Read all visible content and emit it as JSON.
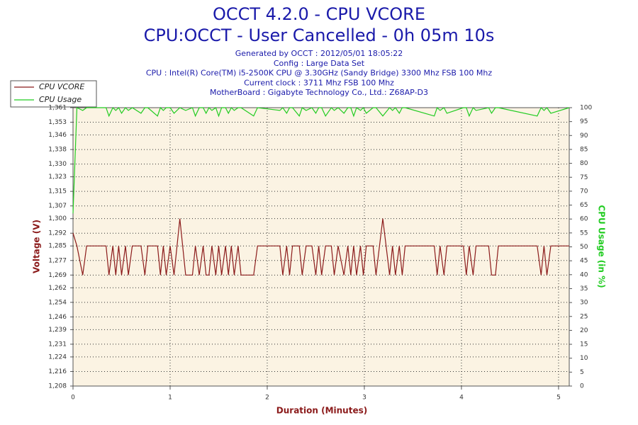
{
  "chart_data": {
    "type": "line",
    "title": "OCCT 4.2.0 - CPU VCORE",
    "subtitle": "CPU:OCCT - User Cancelled - 0h 05m 10s",
    "info_lines": [
      "Generated by OCCT : 2012/05/01 18:05:22",
      "Config : Large Data Set",
      "CPU : Intel(R) Core(TM) i5-2500K CPU @ 3.30GHz (Sandy Bridge) 3300 Mhz FSB 100 Mhz",
      "Current clock : 3711 Mhz FSB 100 Mhz",
      "MotherBoard : Gigabyte Technology Co., Ltd.: Z68AP-D3"
    ],
    "x_label": "Duration (Minutes)",
    "y_label": "Voltage (V)",
    "y2_label": "CPU Usage (in %)",
    "xlim": [
      0,
      5.11
    ],
    "xticks": [
      0,
      1,
      2,
      3,
      4,
      5
    ],
    "ylim": [
      1.208,
      1.361
    ],
    "yticks": [
      {
        "value": 1.208,
        "label": "1,208"
      },
      {
        "value": 1.216,
        "label": "1,216"
      },
      {
        "value": 1.224,
        "label": "1,224"
      },
      {
        "value": 1.231,
        "label": "1,231"
      },
      {
        "value": 1.239,
        "label": "1,239"
      },
      {
        "value": 1.246,
        "label": "1,246"
      },
      {
        "value": 1.254,
        "label": "1,254"
      },
      {
        "value": 1.262,
        "label": "1,262"
      },
      {
        "value": 1.269,
        "label": "1,269"
      },
      {
        "value": 1.277,
        "label": "1,277"
      },
      {
        "value": 1.285,
        "label": "1,285"
      },
      {
        "value": 1.292,
        "label": "1,292"
      },
      {
        "value": 1.3,
        "label": "1,300"
      },
      {
        "value": 1.307,
        "label": "1,307"
      },
      {
        "value": 1.315,
        "label": "1,315"
      },
      {
        "value": 1.323,
        "label": "1,323"
      },
      {
        "value": 1.33,
        "label": "1,330"
      },
      {
        "value": 1.338,
        "label": "1,338"
      },
      {
        "value": 1.346,
        "label": "1,346"
      },
      {
        "value": 1.353,
        "label": "1,353"
      },
      {
        "value": 1.361,
        "label": "1,361"
      }
    ],
    "y2lim": [
      0,
      100
    ],
    "y2ticks": [
      0,
      5,
      10,
      15,
      20,
      25,
      30,
      35,
      40,
      45,
      50,
      55,
      60,
      65,
      70,
      75,
      80,
      85,
      90,
      95,
      100
    ],
    "grid": true,
    "legend": "top-left",
    "x": [
      0,
      0.04,
      0.1,
      0.14,
      0.34,
      0.37,
      0.41,
      0.44,
      0.47,
      0.5,
      0.54,
      0.57,
      0.61,
      0.7,
      0.74,
      0.77,
      0.87,
      0.9,
      0.93,
      0.96,
      1.0,
      1.04,
      1.1,
      1.16,
      1.23,
      1.26,
      1.3,
      1.34,
      1.37,
      1.4,
      1.43,
      1.47,
      1.5,
      1.53,
      1.57,
      1.6,
      1.63,
      1.66,
      1.7,
      1.73,
      1.86,
      1.9,
      2.13,
      2.16,
      2.2,
      2.23,
      2.26,
      2.33,
      2.36,
      2.4,
      2.46,
      2.5,
      2.53,
      2.56,
      2.6,
      2.66,
      2.69,
      2.73,
      2.79,
      2.83,
      2.86,
      2.89,
      2.92,
      2.96,
      2.99,
      3.02,
      3.09,
      3.12,
      3.19,
      3.26,
      3.29,
      3.32,
      3.36,
      3.39,
      3.42,
      3.72,
      3.75,
      3.78,
      3.82,
      3.85,
      4.02,
      4.05,
      4.08,
      4.12,
      4.15,
      4.28,
      4.31,
      4.35,
      4.38,
      4.78,
      4.82,
      4.85,
      4.88,
      4.92,
      5.11
    ],
    "series": [
      {
        "name": "CPU VCORE",
        "color": "#8b1a1a",
        "values": [
          1.292,
          1.285,
          1.269,
          1.285,
          1.285,
          1.269,
          1.285,
          1.269,
          1.285,
          1.269,
          1.285,
          1.269,
          1.285,
          1.285,
          1.269,
          1.285,
          1.285,
          1.269,
          1.285,
          1.269,
          1.285,
          1.269,
          1.3,
          1.269,
          1.269,
          1.285,
          1.269,
          1.285,
          1.269,
          1.269,
          1.285,
          1.269,
          1.285,
          1.269,
          1.285,
          1.269,
          1.285,
          1.269,
          1.285,
          1.269,
          1.269,
          1.285,
          1.285,
          1.269,
          1.285,
          1.269,
          1.285,
          1.285,
          1.269,
          1.285,
          1.285,
          1.269,
          1.285,
          1.269,
          1.285,
          1.285,
          1.269,
          1.285,
          1.269,
          1.285,
          1.269,
          1.285,
          1.269,
          1.285,
          1.269,
          1.285,
          1.285,
          1.269,
          1.3,
          1.269,
          1.285,
          1.269,
          1.285,
          1.269,
          1.285,
          1.285,
          1.269,
          1.285,
          1.269,
          1.285,
          1.285,
          1.269,
          1.285,
          1.269,
          1.285,
          1.285,
          1.269,
          1.269,
          1.285,
          1.285,
          1.269,
          1.285,
          1.269,
          1.285,
          1.285
        ]
      },
      {
        "name": "CPU Usage",
        "color": "#22cc22",
        "axis": "y2",
        "values": [
          62,
          100,
          99,
          100,
          100,
          97,
          100,
          99,
          100,
          98,
          100,
          99,
          100,
          98,
          100,
          100,
          97,
          100,
          99,
          100,
          100,
          98,
          100,
          99,
          100,
          97,
          100,
          100,
          98,
          100,
          99,
          100,
          97,
          100,
          100,
          98,
          100,
          99,
          100,
          100,
          97,
          100,
          99,
          100,
          98,
          100,
          100,
          97,
          100,
          99,
          100,
          98,
          100,
          100,
          97,
          100,
          99,
          100,
          98,
          100,
          100,
          97,
          100,
          99,
          100,
          98,
          100,
          100,
          97,
          100,
          99,
          100,
          98,
          100,
          100,
          97,
          100,
          99,
          100,
          98,
          100,
          100,
          97,
          100,
          99,
          100,
          98,
          100,
          100,
          97,
          100,
          99,
          100,
          98,
          100
        ]
      }
    ]
  }
}
